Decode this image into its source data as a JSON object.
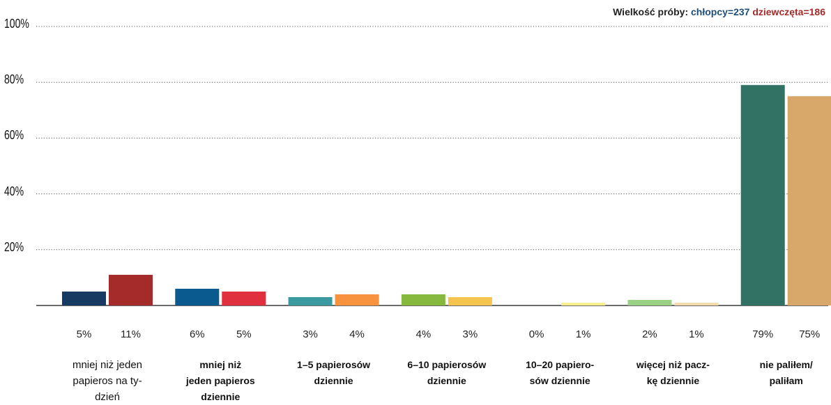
{
  "legend": {
    "prefix": "Wielkość próby:",
    "boys": "chłopcy=237",
    "girls": "dziewczęta=186",
    "boys_color": "#1d4e78",
    "girls_color": "#a52a2a"
  },
  "chart_data": {
    "type": "bar",
    "ylim": [
      0,
      100
    ],
    "yticks": [
      "20%",
      "40%",
      "60%",
      "80%",
      "100%"
    ],
    "grid": true,
    "categories": [
      "mniej niż jeden papieros na ty-dzień",
      "mniej niż jeden papieros dziennie",
      "1–5 papierosów dziennie",
      "6–10 papierosów dziennie",
      "10–20 papiero-sów dziennie",
      "więcej niż pacz-kę dziennie",
      "nie paliłem/ paliłam"
    ],
    "category_lines": [
      [
        "mniej niż jeden",
        "papieros na ty-",
        "dzień"
      ],
      [
        "mniej niż",
        "jeden papieros",
        "dziennie"
      ],
      [
        "1–5 papierosów",
        "dziennie"
      ],
      [
        "6–10 papierosów",
        "dziennie"
      ],
      [
        "10–20 papiero-",
        "sów dziennie"
      ],
      [
        "więcej niż pacz-",
        "kę dziennie"
      ],
      [
        "nie paliłem/",
        "paliłam"
      ]
    ],
    "category_bold": [
      false,
      true,
      true,
      true,
      true,
      true,
      true
    ],
    "series": [
      {
        "values": [
          5,
          6,
          3,
          4,
          0,
          2,
          79
        ],
        "labels": [
          "5%",
          "6%",
          "3%",
          "4%",
          "0%",
          "2%",
          "79%"
        ],
        "colors": [
          "#173a63",
          "#0a5a8f",
          "#3a9aa0",
          "#86b83e",
          "#f7ee8c",
          "#9bd184",
          "#317265"
        ]
      },
      {
        "values": [
          11,
          5,
          4,
          3,
          1,
          1,
          75
        ],
        "labels": [
          "11%",
          "5%",
          "4%",
          "3%",
          "1%",
          "1%",
          "75%"
        ],
        "colors": [
          "#a52a2a",
          "#e02f3f",
          "#f7923e",
          "#f5c44e",
          "#f7ee8c",
          "#f5dbab",
          "#d8a86a"
        ]
      }
    ]
  }
}
